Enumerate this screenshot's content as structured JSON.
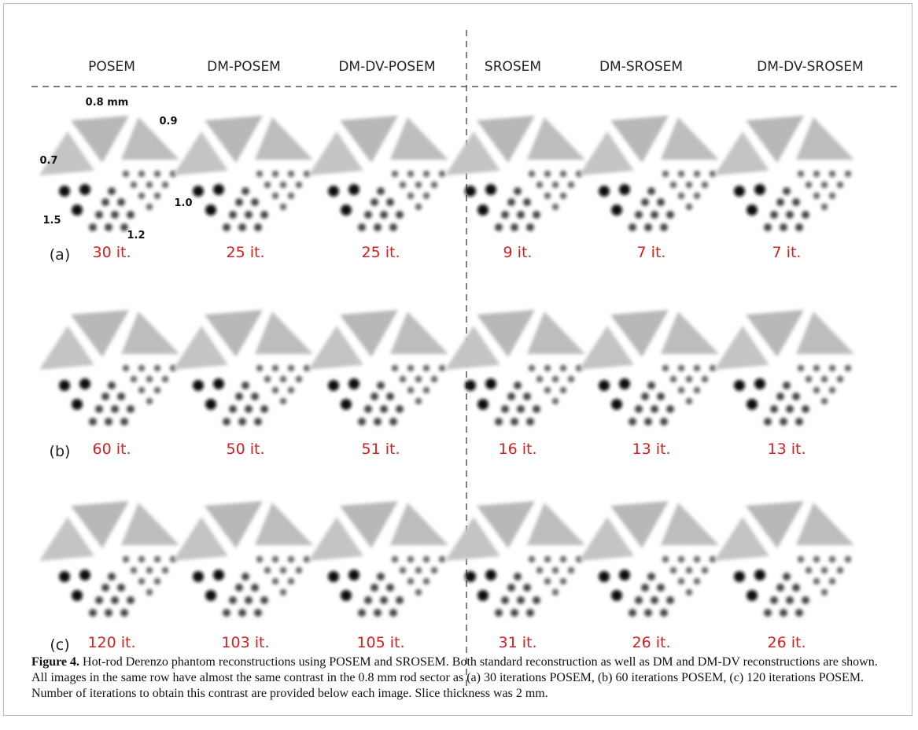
{
  "columns": [
    "POSEM",
    "DM-POSEM",
    "DM-DV-POSEM",
    "SROSEM",
    "DM-SROSEM",
    "DM-DV-SROSEM"
  ],
  "rows": [
    {
      "label": "(a)",
      "iterations": [
        "30 it.",
        "25 it.",
        "25 it.",
        "9 it.",
        "7 it.",
        "7 it."
      ]
    },
    {
      "label": "(b)",
      "iterations": [
        "60 it.",
        "50 it.",
        "51 it.",
        "16 it.",
        "13 it.",
        "13 it."
      ]
    },
    {
      "label": "(c)",
      "iterations": [
        "120 it.",
        "103 it.",
        "105 it.",
        "31 it.",
        "26 it.",
        "26 it."
      ]
    }
  ],
  "annotations": [
    "0.8 mm",
    "0.9",
    "0.7",
    "1.0",
    "1.5",
    "1.2"
  ],
  "caption": {
    "label": "Figure 4.",
    "text": "Hot-rod Derenzo phantom reconstructions using POSEM and SROSEM. Both standard reconstruction as well as DM and DM-DV reconstructions are shown. All images in the same row have almost the same contrast in the 0.8 mm rod sector as (a) 30 iterations POSEM, (b) 60 iterations POSEM, (c) 120 iterations POSEM. Number of iterations to obtain this contrast are provided below each image. Slice thickness was 2 mm."
  }
}
